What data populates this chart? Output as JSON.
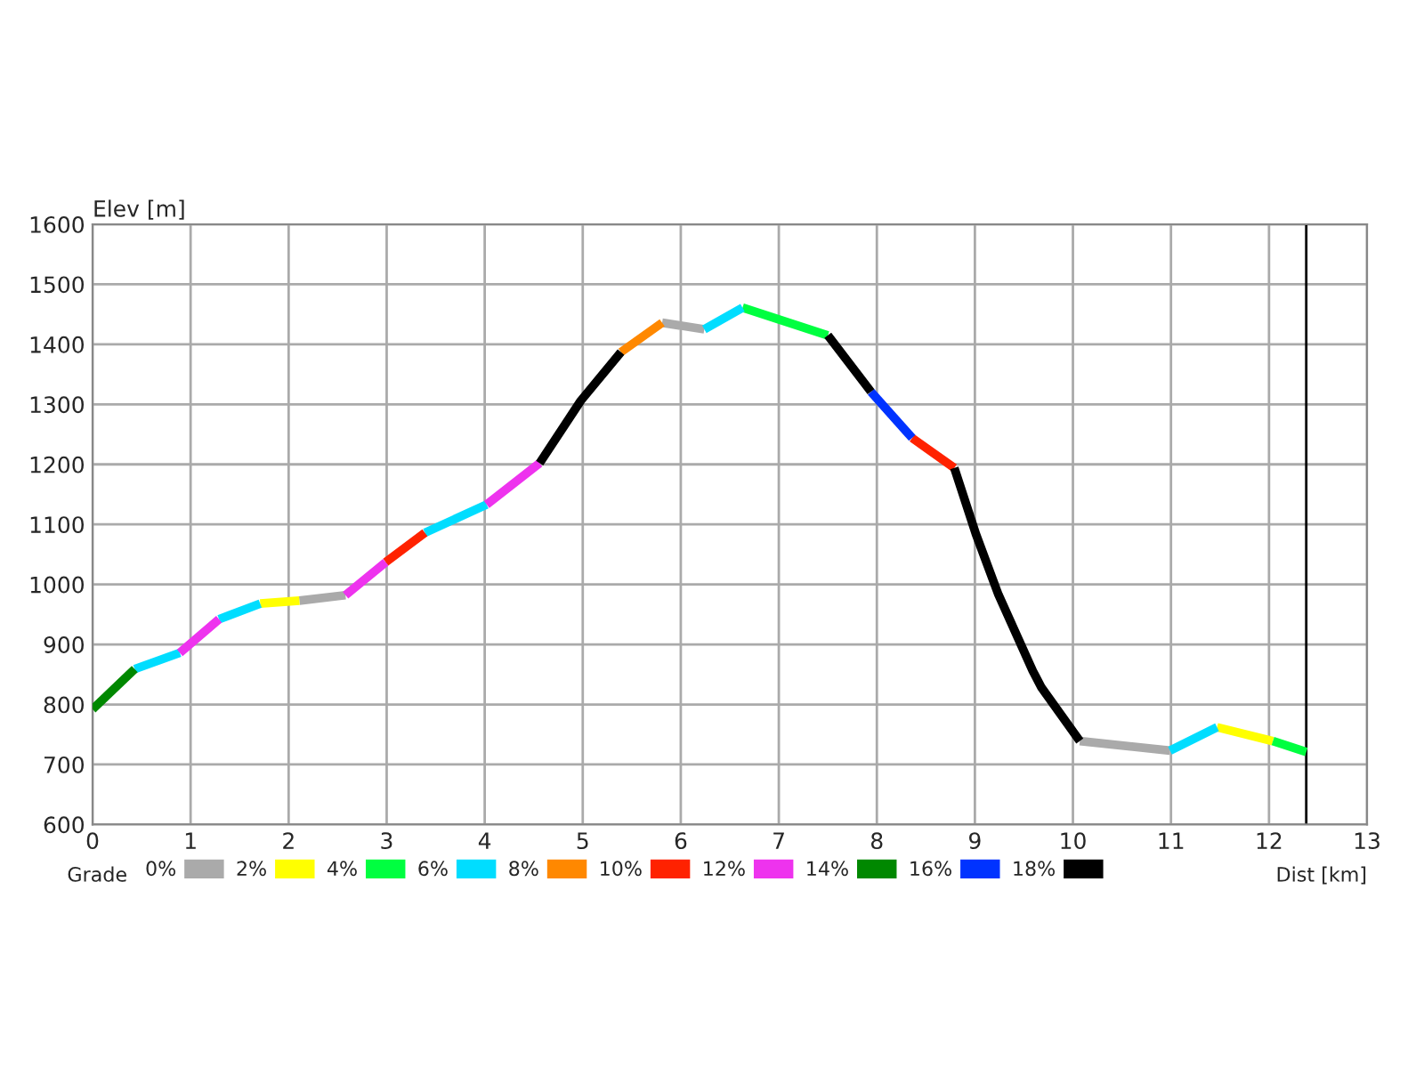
{
  "chart_data": {
    "type": "line",
    "xlabel": "Dist [km]",
    "ylabel": "Elev [m]",
    "legend_title": "Grade",
    "xlim": [
      0,
      13
    ],
    "xticks": [
      0,
      1,
      2,
      3,
      4,
      5,
      6,
      7,
      8,
      9,
      10,
      11,
      12,
      13
    ],
    "ylim": [
      600,
      1600
    ],
    "yticks": [
      600,
      700,
      800,
      900,
      1000,
      1100,
      1200,
      1300,
      1400,
      1500,
      1600
    ],
    "grid": true,
    "legend": "bottom",
    "marker": "none",
    "line_style": "solid",
    "ref_lines": [
      {
        "axis": "x",
        "value": 12.38,
        "label": null,
        "color": "#000000"
      }
    ],
    "series": [
      {
        "name": "0%",
        "color": "#aaaaaa",
        "x": [
          2.11,
          2.58,
          2.6,
          5.81,
          6.24,
          6.3,
          10.07,
          10.99
        ],
        "values": [
          973,
          982,
          null,
          1436,
          1425,
          null,
          739,
          723
        ]
      },
      {
        "name": "2%",
        "color": "#ffff00",
        "x": [
          1.71,
          2.11,
          2.2,
          11.47,
          12.04
        ],
        "values": [
          968,
          973,
          null,
          762,
          739
        ]
      },
      {
        "name": "4%",
        "color": "#00ff40",
        "x": [
          6.63,
          7.5,
          7.6,
          12.04,
          12.38
        ],
        "values": [
          1461,
          1415,
          null,
          739,
          721
        ]
      },
      {
        "name": "6%",
        "color": "#00ddff",
        "x": [
          0.43,
          0.89,
          0.9,
          1.29,
          1.71,
          1.8,
          3.39,
          4.02,
          4.1,
          6.24,
          6.63,
          6.7,
          10.99,
          11.47
        ],
        "values": [
          859,
          886,
          null,
          942,
          968,
          null,
          1086,
          1133,
          null,
          1425,
          1461,
          null,
          723,
          762
        ]
      },
      {
        "name": "8%",
        "color": "#ff8800",
        "x": [
          5.39,
          5.81
        ],
        "values": [
          1387,
          1436
        ]
      },
      {
        "name": "10%",
        "color": "#ff2200",
        "x": [
          2.99,
          3.39,
          3.4,
          8.36,
          8.79
        ],
        "values": [
          1037,
          1086,
          null,
          1244,
          1194
        ]
      },
      {
        "name": "12%",
        "color": "#ee33ee",
        "x": [
          0.89,
          1.29,
          1.3,
          2.58,
          2.99,
          3.0,
          4.02,
          4.56
        ],
        "values": [
          886,
          942,
          null,
          982,
          1037,
          null,
          1133,
          1202
        ]
      },
      {
        "name": "14%",
        "color": "#008800",
        "x": [
          0,
          0.43
        ],
        "values": [
          792,
          859
        ]
      },
      {
        "name": "16%",
        "color": "#0033ff",
        "x": [
          7.94,
          8.36
        ],
        "values": [
          1321,
          1244
        ]
      },
      {
        "name": "18%",
        "color": "#000000",
        "x": [
          4.56,
          4.98,
          5.39,
          5.4,
          7.5,
          7.94,
          8.0,
          8.79,
          9.01,
          9.24,
          9.59,
          9.68,
          10.07
        ],
        "values": [
          1202,
          1306,
          1387,
          null,
          1415,
          1321,
          null,
          1194,
          1084,
          983,
          856,
          828,
          739
        ]
      }
    ]
  }
}
